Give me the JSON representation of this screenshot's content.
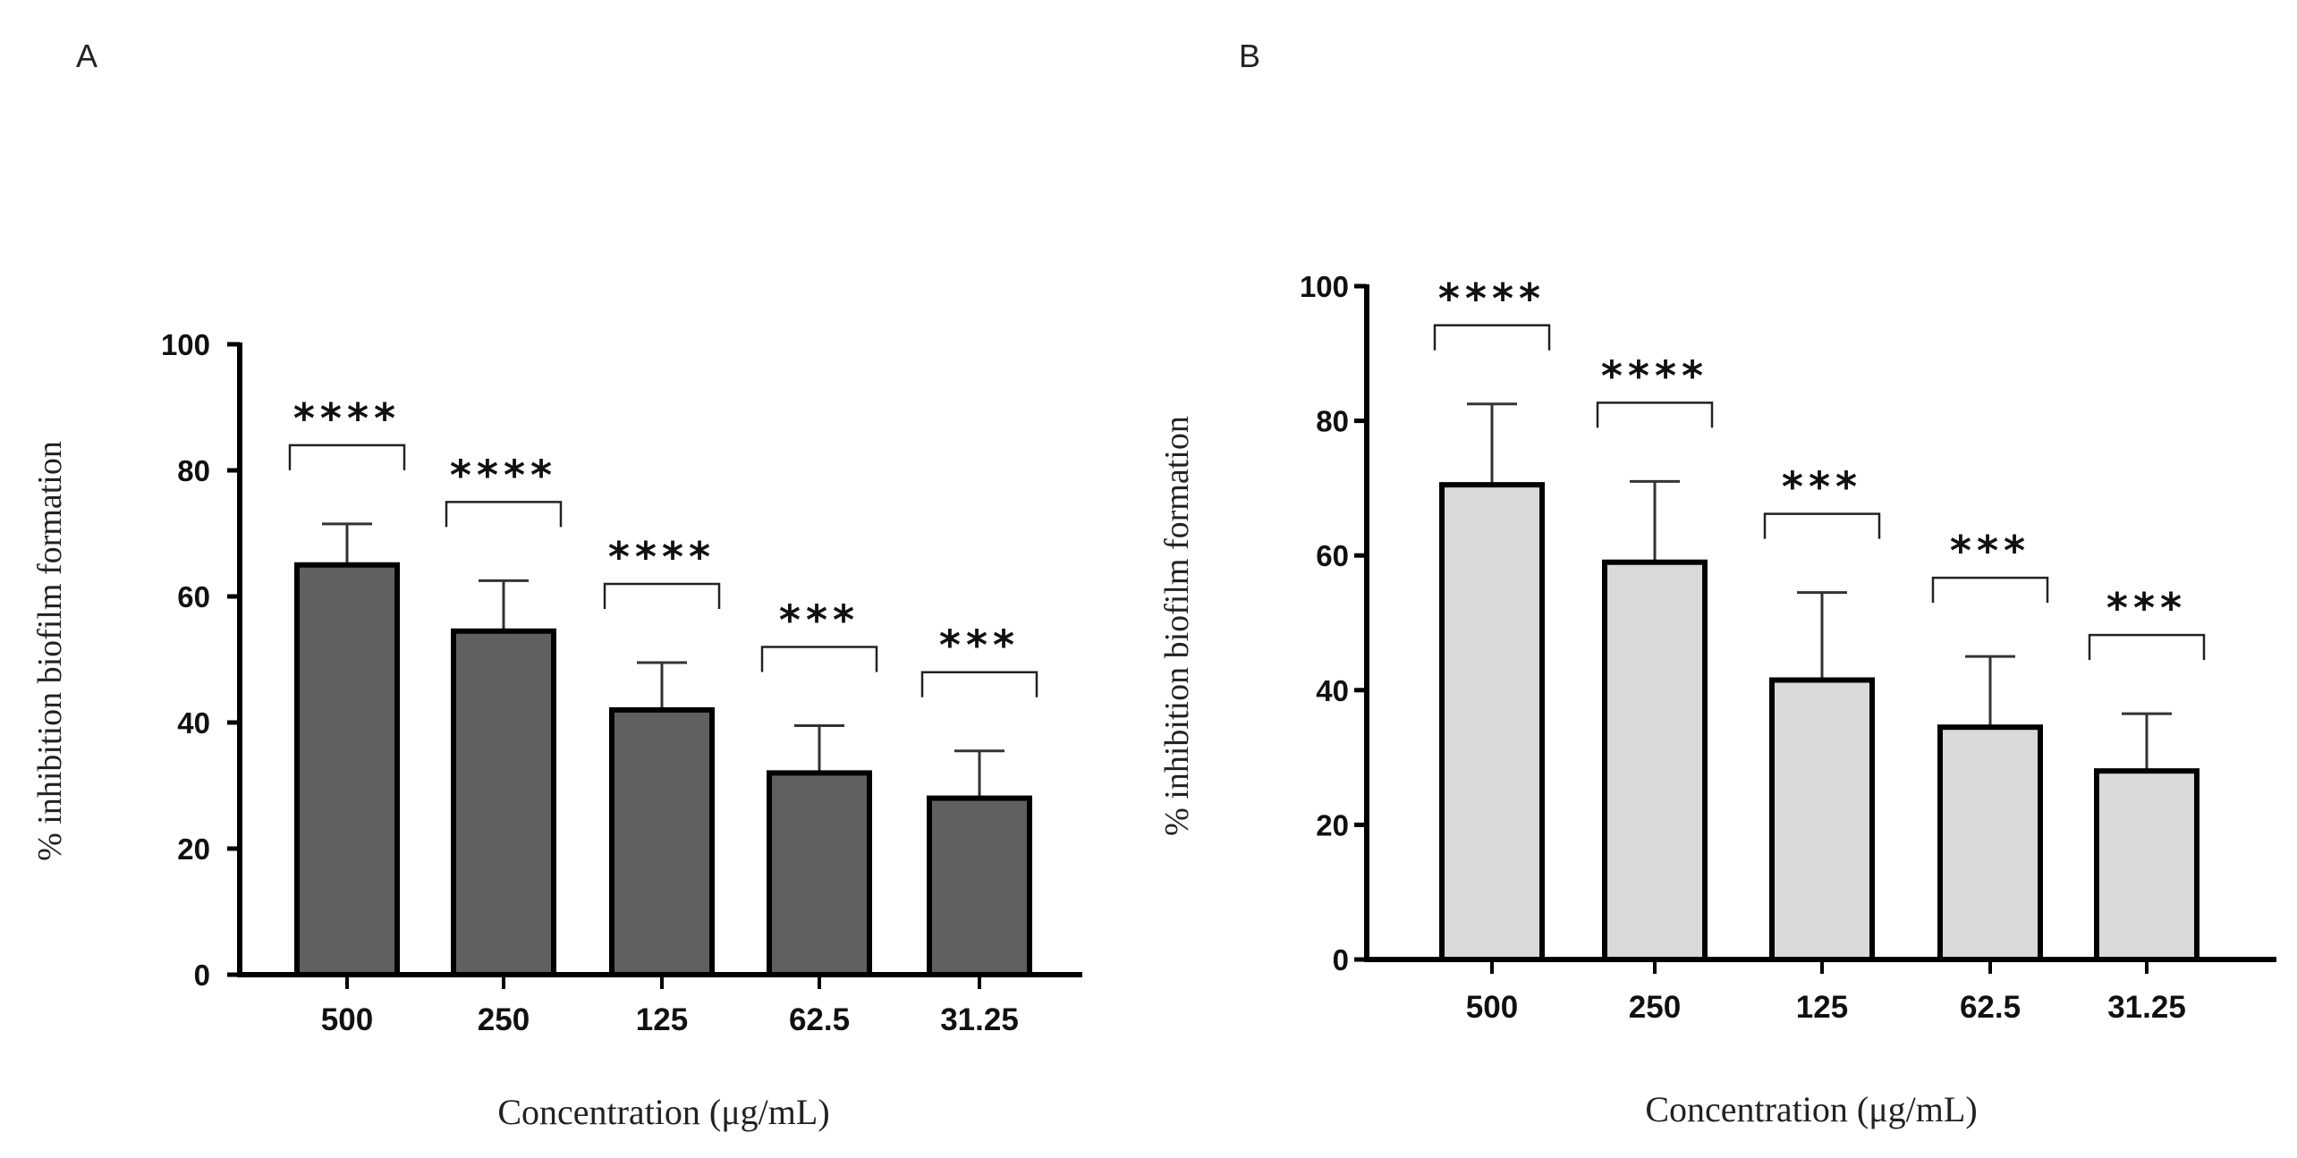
{
  "chart_data": [
    {
      "type": "bar",
      "panel": "A",
      "categories": [
        "500",
        "250",
        "125",
        "62.5",
        "31.25"
      ],
      "values": [
        65,
        54.5,
        42,
        32,
        28
      ],
      "errors": [
        6.5,
        8,
        7.5,
        7.5,
        7.5
      ],
      "significance": [
        "****",
        "****",
        "****",
        "***",
        "***"
      ],
      "ylim": [
        0,
        100
      ],
      "yticks": [
        "0",
        "20",
        "40",
        "60",
        "80",
        "100"
      ],
      "xlabel": "Concentration (μg/mL)",
      "ylabel": "% inhibition biofilm formation",
      "bar_color": "#606060",
      "edge_color": "#000000"
    },
    {
      "type": "bar",
      "panel": "B",
      "categories": [
        "500",
        "250",
        "125",
        "62.5",
        "31.25"
      ],
      "values": [
        70.5,
        59,
        41.5,
        34.5,
        28
      ],
      "errors": [
        12,
        12,
        13,
        10.5,
        8.5
      ],
      "significance": [
        "****",
        "****",
        "***",
        "***",
        "***"
      ],
      "ylim": [
        0,
        100
      ],
      "yticks": [
        "0",
        "20",
        "40",
        "60",
        "80",
        "100"
      ],
      "xlabel": "Concentration (μg/mL)",
      "ylabel": "% inhibition biofilm formation",
      "bar_color": "#d9d9d9",
      "edge_color": "#000000"
    }
  ]
}
